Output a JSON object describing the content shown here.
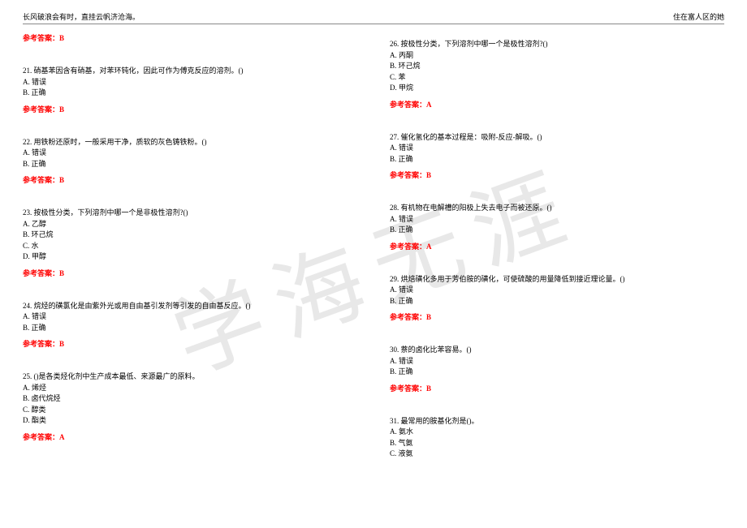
{
  "header": {
    "left": "长风破浪会有时，直挂云帆济沧海。",
    "right": "住在富人区的她"
  },
  "watermark": "学海无涯",
  "ansLabel": "参考答案：",
  "left": {
    "a20": "B",
    "q21": "21. 硝基苯因含有硝基，对苯环钝化，因此可作为傅克反应的溶剂。()",
    "q21a": "A. 错误",
    "q21b": "B. 正确",
    "a21": "B",
    "q22": "22. 用铁粉还原时，一般采用干净，质软的灰色铸铁粉。()",
    "q22a": "A. 错误",
    "q22b": "B. 正确",
    "a22": "B",
    "q23": "23. 按极性分类，下列溶剂中哪一个是非极性溶剂?()",
    "q23a": "A. 乙醇",
    "q23b": "B. 环己烷",
    "q23c": "C. 水",
    "q23d": "D. 甲醇",
    "a23": "B",
    "q24": "24. 烷烃的磺氯化是由紫外光或用自由基引发剂等引发的自由基反应。()",
    "q24a": "A. 错误",
    "q24b": "B. 正确",
    "a24": "B",
    "q25": "25. ()是各类烃化剂中生产成本最低、来源最广的原料。",
    "q25a": "A. 烯烃",
    "q25b": "B. 卤代烷烃",
    "q25c": "C. 醇类",
    "q25d": "D. 酯类",
    "a25": "A"
  },
  "right": {
    "q26": "26. 按极性分类，下列溶剂中哪一个是极性溶剂?()",
    "q26a": "A. 丙酮",
    "q26b": "B. 环己烷",
    "q26c": "C. 苯",
    "q26d": "D. 甲烷",
    "a26": "A",
    "q27": "27. 催化氢化的基本过程是：吸附-反应-解吸。()",
    "q27a": "A. 错误",
    "q27b": "B. 正确",
    "a27": "B",
    "q28": "28. 有机物在电解槽的阳极上失去电子而被还原。()",
    "q28a": "A. 错误",
    "q28b": "B. 正确",
    "a28": "A",
    "q29": "29. 烘焙磺化多用于芳伯胺的磺化，可使硫酸的用量降低到接近理论量。()",
    "q29a": "A. 错误",
    "q29b": "B. 正确",
    "a29": "B",
    "q30": "30. 萘的卤化比苯容易。()",
    "q30a": "A. 错误",
    "q30b": "B. 正确",
    "a30": "B",
    "q31": "31. 最常用的胺基化剂是()。",
    "q31a": "A. 氨水",
    "q31b": "B. 气氨",
    "q31c": "C. 液氨"
  },
  "style": {
    "answer_color": "#ff0000",
    "text_color": "#000000",
    "watermark_color": "#e8e8e8",
    "background": "#ffffff",
    "font_size_body": 9,
    "font_size_watermark": 110
  }
}
